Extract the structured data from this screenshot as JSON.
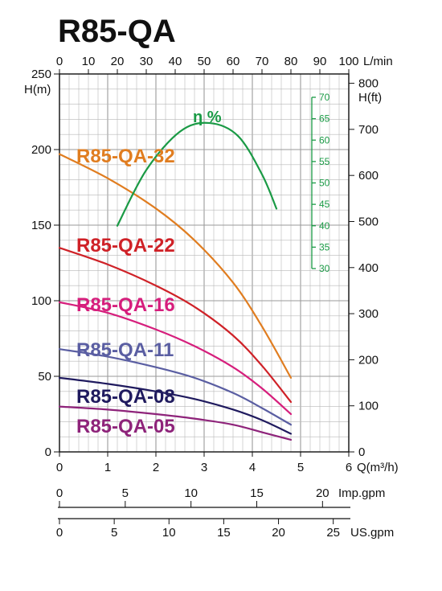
{
  "title": "R85-QA",
  "colors": {
    "eff": "#1a9a45",
    "grid": "#8c8c8c",
    "axis": "#111111"
  },
  "chart_data": {
    "type": "line",
    "title": "R85-QA",
    "xlabel": "Q(m³/h)",
    "ylabel": "H(m)",
    "xlim": [
      0,
      6
    ],
    "ylim": [
      0,
      250
    ],
    "x_ticks": [
      "0",
      "1",
      "2",
      "3",
      "4",
      "5",
      "6"
    ],
    "y_ticks": [
      "0",
      "50",
      "100",
      "150",
      "200",
      "250"
    ],
    "top_axis": {
      "label": "L/min",
      "ticks": [
        "0",
        "10",
        "20",
        "30",
        "40",
        "50",
        "60",
        "70",
        "80",
        "90",
        "100"
      ]
    },
    "right_axis": {
      "label": "H(ft)",
      "ticks": [
        "0",
        "100",
        "200",
        "300",
        "400",
        "500",
        "600",
        "700",
        "800"
      ]
    },
    "eff_axis": {
      "label": "η %",
      "ticks": [
        "30",
        "35",
        "40",
        "45",
        "50",
        "55",
        "60",
        "65",
        "70"
      ]
    },
    "imp_axis": {
      "label": "Imp.gpm",
      "ticks": [
        "0",
        "5",
        "10",
        "15",
        "20"
      ]
    },
    "us_axis": {
      "label": "US.gpm",
      "ticks": [
        "0",
        "5",
        "10",
        "15",
        "20",
        "25"
      ]
    },
    "series": [
      {
        "name": "R85-QA-32",
        "color": "#e07d20",
        "x": [
          0,
          1,
          2,
          2.8,
          3.6,
          4.2,
          4.8
        ],
        "y": [
          197,
          181,
          161,
          140,
          112,
          83,
          49
        ]
      },
      {
        "name": "R85-QA-22",
        "color": "#cf2127",
        "x": [
          0,
          1,
          2,
          2.8,
          3.6,
          4.2,
          4.8
        ],
        "y": [
          135,
          124,
          110,
          96,
          77,
          57,
          33
        ]
      },
      {
        "name": "R85-QA-16",
        "color": "#d61e7c",
        "x": [
          0,
          1,
          2,
          2.8,
          3.6,
          4.2,
          4.8
        ],
        "y": [
          99,
          92,
          81,
          70,
          56,
          42,
          25
        ]
      },
      {
        "name": "R85-QA-11",
        "color": "#5a5ea2",
        "x": [
          0,
          1,
          2,
          2.8,
          3.6,
          4.2,
          4.8
        ],
        "y": [
          68,
          63,
          56,
          49,
          39,
          29,
          18
        ]
      },
      {
        "name": "R85-QA-08",
        "color": "#1f1a5e",
        "x": [
          0,
          1,
          2,
          2.8,
          3.6,
          4.2,
          4.8
        ],
        "y": [
          49,
          45,
          40,
          35,
          28,
          21,
          12
        ]
      },
      {
        "name": "R85-QA-05",
        "color": "#8e237a",
        "x": [
          0,
          1,
          2,
          2.8,
          3.6,
          4.2,
          4.8
        ],
        "y": [
          30,
          28,
          25,
          22,
          18,
          13,
          8
        ]
      },
      {
        "name": "η %",
        "color": "#1a9a45",
        "axis": "eff",
        "x": [
          1.2,
          1.8,
          2.5,
          3.1,
          3.7,
          4.2,
          4.5
        ],
        "y": [
          40,
          53,
          62,
          64,
          61,
          52,
          44
        ]
      }
    ]
  }
}
